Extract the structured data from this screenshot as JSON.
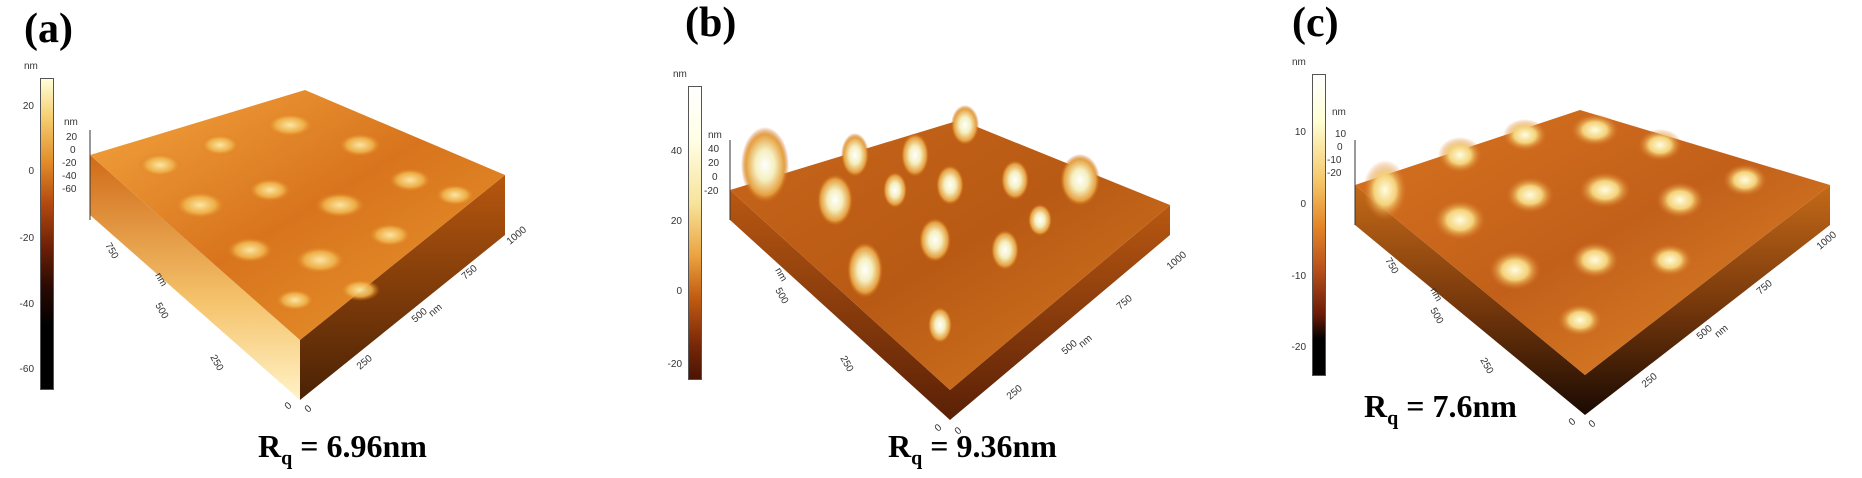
{
  "panels": [
    {
      "label": "(a)",
      "colorbar": {
        "unit": "nm",
        "ticks": [
          "20",
          "0",
          "-20",
          "-40",
          "-60"
        ]
      },
      "z_axis": {
        "unit": "nm",
        "ticks": [
          "20",
          "0",
          "-20",
          "-40",
          "-60"
        ]
      },
      "x_axis_ticks": [
        "0",
        "250",
        "500",
        "750",
        "1000"
      ],
      "x_axis_unit": "nm",
      "y_axis_ticks": [
        "0",
        "250",
        "500",
        "750"
      ],
      "y_axis_unit": "nm",
      "rq_symbol": "R",
      "rq_sub": "q",
      "rq_text": " = 6.96nm"
    },
    {
      "label": "(b)",
      "colorbar": {
        "unit": "nm",
        "ticks": [
          "40",
          "20",
          "0",
          "-20"
        ]
      },
      "z_axis": {
        "unit": "nm",
        "ticks": [
          "40",
          "20",
          "0",
          "-20"
        ]
      },
      "x_axis_ticks": [
        "0",
        "250",
        "500",
        "750",
        "1000"
      ],
      "x_axis_unit": "nm",
      "y_axis_ticks": [
        "0",
        "250",
        "500"
      ],
      "y_axis_unit": "nm",
      "rq_symbol": "R",
      "rq_sub": "q",
      "rq_text": " = 9.36nm"
    },
    {
      "label": "(c)",
      "colorbar": {
        "unit": "nm",
        "ticks": [
          "10",
          "0",
          "-10",
          "-20"
        ]
      },
      "z_axis": {
        "unit": "nm",
        "ticks": [
          "10",
          "0",
          "-10",
          "-20"
        ]
      },
      "x_axis_ticks": [
        "0",
        "250",
        "500",
        "750",
        "1000"
      ],
      "x_axis_unit": "nm",
      "y_axis_ticks": [
        "0",
        "250",
        "500",
        "750"
      ],
      "y_axis_unit": "nm",
      "rq_symbol": "R",
      "rq_sub": "q",
      "rq_text": " = 7.6nm"
    }
  ],
  "colors": {
    "low": "#000000",
    "mid": "#c8641a",
    "high": "#ffffe0",
    "surface_dark": "#8a3f0a"
  }
}
